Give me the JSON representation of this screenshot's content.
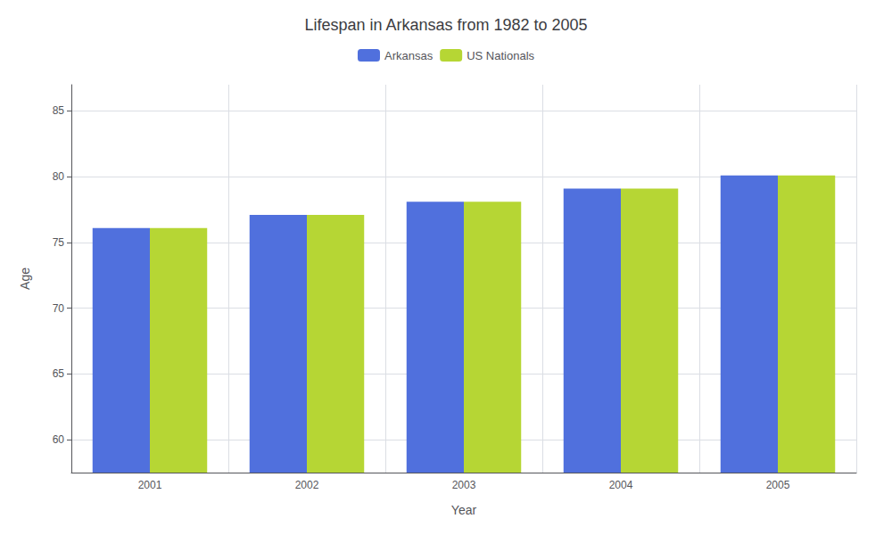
{
  "chart_data": {
    "type": "bar",
    "title": "Lifespan in Arkansas from 1982 to 2005",
    "x_label": "Year",
    "y_label": "Age",
    "categories": [
      "2001",
      "2002",
      "2003",
      "2004",
      "2005"
    ],
    "series": [
      {
        "name": "Arkansas",
        "values": [
          76.1,
          77.1,
          78.1,
          79.1,
          80.1
        ]
      },
      {
        "name": "US Nationals",
        "values": [
          76.1,
          77.1,
          78.1,
          79.1,
          80.1
        ]
      }
    ],
    "ylim": [
      57.5,
      87
    ],
    "yticks": [
      60,
      65,
      70,
      75,
      80,
      85
    ],
    "grid": true,
    "legend": "top"
  }
}
